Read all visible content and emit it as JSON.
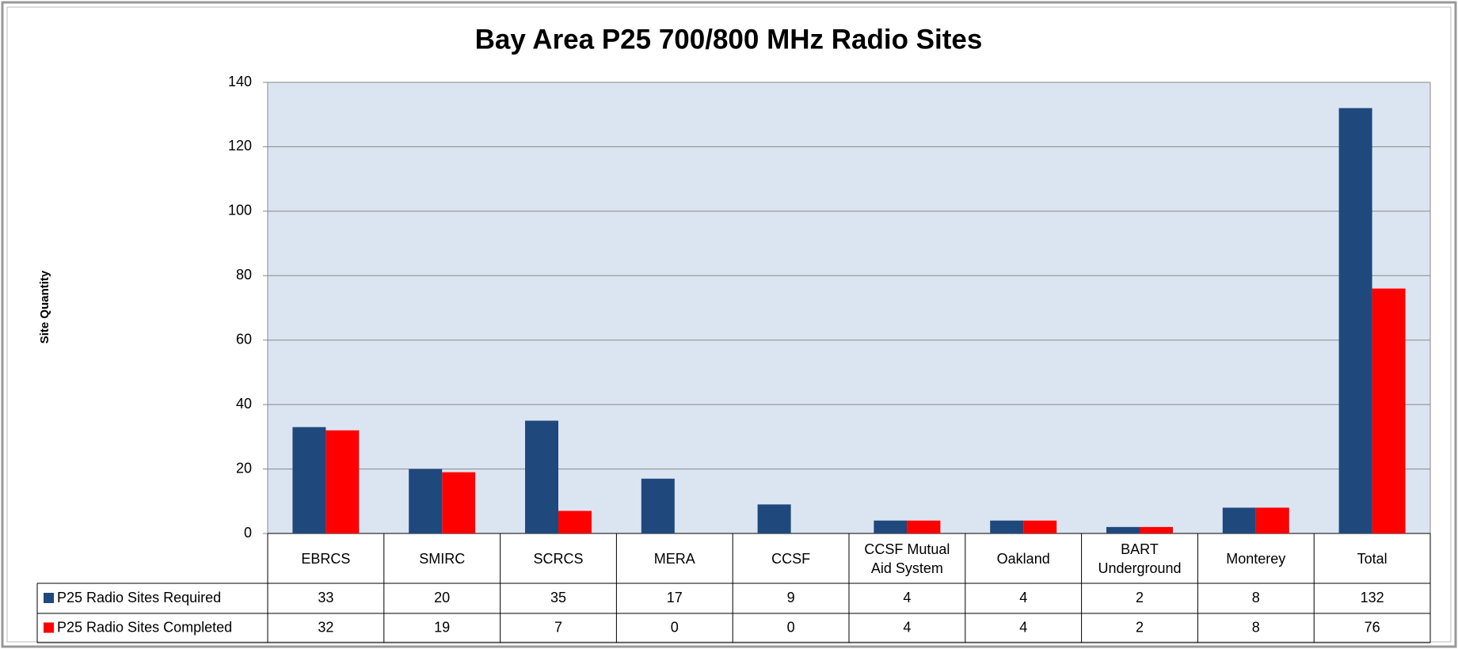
{
  "chart_data": {
    "type": "bar",
    "title": "Bay Area P25 700/800 MHz Radio Sites",
    "y_label": "Site Quantity",
    "categories": [
      "EBRCS",
      "SMIRC",
      "SCRCS",
      "MERA",
      "CCSF",
      "CCSF Mutual Aid System",
      "Oakland",
      "BART Underground",
      "Monterey",
      "Total"
    ],
    "series": [
      {
        "name": "P25 Radio Sites Required",
        "color": "#1f497d",
        "values": [
          33,
          20,
          35,
          17,
          9,
          4,
          4,
          2,
          8,
          132
        ]
      },
      {
        "name": "P25 Radio Sites Completed",
        "color": "#ff0000",
        "values": [
          32,
          19,
          7,
          0,
          0,
          4,
          4,
          2,
          8,
          76
        ]
      }
    ],
    "ylim": [
      0,
      140
    ],
    "yticks": [
      0,
      20,
      40,
      60,
      80,
      100,
      120,
      140
    ],
    "grid": true
  }
}
